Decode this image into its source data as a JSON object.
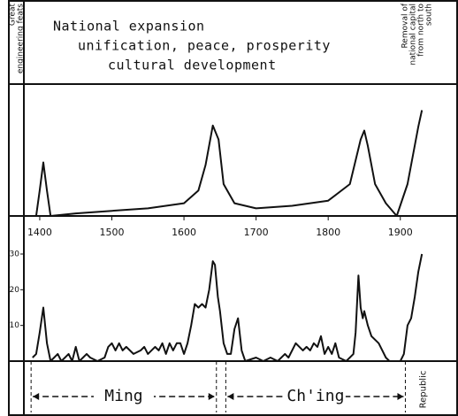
{
  "chart_data": [
    {
      "type": "line",
      "title_lines": [
        "National expansion",
        "unification, peace, prosperity",
        "cultural development"
      ],
      "left_note": [
        "Great",
        "engineering feats"
      ],
      "right_note": [
        "Removal of",
        "national capital",
        "from north to",
        "south"
      ],
      "color": "#111",
      "xlim": [
        1378,
        1980
      ],
      "xticks": [
        1400,
        1500,
        1600,
        1700,
        1800,
        1900
      ],
      "ylim": [
        0,
        100
      ],
      "x": [
        1395,
        1400,
        1405,
        1410,
        1415,
        1450,
        1500,
        1550,
        1600,
        1620,
        1630,
        1640,
        1648,
        1655,
        1670,
        1700,
        1750,
        1800,
        1830,
        1845,
        1850,
        1855,
        1865,
        1880,
        1895,
        1910,
        1925,
        1930
      ],
      "values": [
        0,
        20,
        42,
        20,
        0,
        2,
        4,
        6,
        10,
        20,
        40,
        71,
        60,
        25,
        10,
        6,
        8,
        12,
        25,
        60,
        67,
        55,
        25,
        10,
        0,
        25,
        70,
        83
      ]
    },
    {
      "type": "line",
      "color": "#111",
      "xlim": [
        1378,
        1980
      ],
      "ylim": [
        0,
        30
      ],
      "yticks": [
        10,
        20,
        30
      ],
      "x": [
        1390,
        1395,
        1400,
        1405,
        1410,
        1415,
        1425,
        1430,
        1440,
        1445,
        1450,
        1455,
        1465,
        1470,
        1480,
        1490,
        1495,
        1500,
        1505,
        1510,
        1515,
        1520,
        1530,
        1540,
        1545,
        1550,
        1560,
        1565,
        1570,
        1575,
        1580,
        1585,
        1590,
        1595,
        1600,
        1605,
        1610,
        1615,
        1620,
        1625,
        1630,
        1635,
        1640,
        1643,
        1647,
        1650,
        1655,
        1660,
        1665,
        1670,
        1675,
        1680,
        1685,
        1700,
        1710,
        1720,
        1730,
        1740,
        1745,
        1755,
        1760,
        1765,
        1770,
        1775,
        1780,
        1785,
        1790,
        1795,
        1800,
        1805,
        1810,
        1815,
        1825,
        1835,
        1838,
        1842,
        1845,
        1848,
        1850,
        1855,
        1860,
        1865,
        1870,
        1875,
        1880,
        1885,
        1900,
        1905,
        1910,
        1915,
        1920,
        1925,
        1930
      ],
      "values": [
        1,
        2,
        8,
        15,
        5,
        0,
        2,
        0,
        2,
        0,
        4,
        0,
        2,
        1,
        0,
        1,
        4,
        5,
        3,
        5,
        3,
        4,
        2,
        3,
        4,
        2,
        4,
        3,
        5,
        2,
        5,
        3,
        5,
        5,
        2,
        5,
        10,
        16,
        15,
        16,
        15,
        20,
        28,
        27,
        18,
        14,
        5,
        2,
        2,
        9,
        12,
        3,
        0,
        1,
        0,
        1,
        0,
        2,
        1,
        5,
        4,
        3,
        4,
        3,
        5,
        4,
        7,
        2,
        4,
        2,
        5,
        1,
        0,
        2,
        8,
        24,
        15,
        12,
        14,
        10,
        7,
        6,
        5,
        3,
        1,
        0,
        0,
        2,
        10,
        12,
        18,
        25,
        30
      ],
      "periods": [
        {
          "name": "Ming",
          "start": 1388,
          "end": 1645
        },
        {
          "name": "Ch'ing",
          "start": 1658,
          "end": 1907
        }
      ],
      "republic": {
        "name": "Republic",
        "start": 1907
      }
    }
  ]
}
